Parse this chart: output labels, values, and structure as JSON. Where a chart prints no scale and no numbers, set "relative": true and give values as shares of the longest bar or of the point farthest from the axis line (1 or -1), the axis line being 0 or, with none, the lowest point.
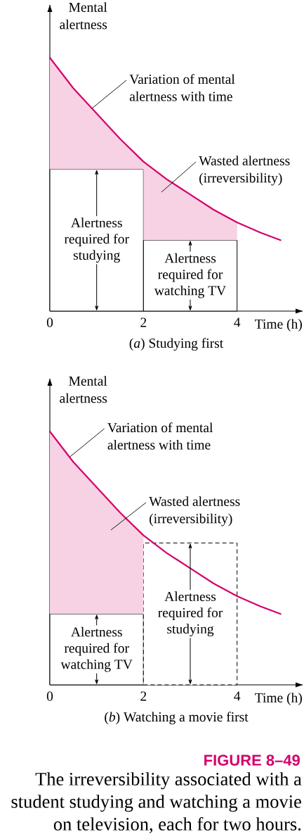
{
  "chart_data": [
    {
      "type": "line",
      "title": "(*a*) Studying first",
      "xlabel": "Time (h)",
      "ylabel": "Mental alertness",
      "relative": true,
      "xlim": [
        0,
        5.4
      ],
      "xticks": [
        0,
        2,
        4
      ],
      "series": [
        {
          "type": "bar",
          "x": [
            1
          ],
          "values": [
            0.56
          ],
          "color": "#ffffff",
          "line_style": "solid"
        },
        {
          "type": "bar",
          "x": [
            3
          ],
          "values": [
            0.28
          ],
          "color": "#ffffff",
          "line_style": "solid"
        },
        {
          "color": "#d4006b",
          "x": [
            0,
            0.5,
            1,
            1.5,
            2,
            2,
            2.5,
            3,
            3.5,
            4,
            4.5,
            4.93
          ],
          "values": [
            1,
            0.88,
            0.78,
            0.68,
            0.59,
            0.59,
            0.52,
            0.46,
            0.4,
            0.35,
            0.31,
            0.28
          ],
          "lower": [
            0.56,
            0.56,
            0.56,
            0.56,
            0.56,
            0.28,
            0.28,
            0.28,
            0.28,
            0.28,
            null,
            null
          ],
          "upper": [
            1,
            0.88,
            0.78,
            0.68,
            0.59,
            0.59,
            0.52,
            0.46,
            0.4,
            0.35,
            null,
            null
          ]
        }
      ],
      "annotations": [
        {
          "text": "Variation of mental alertness with time",
          "x": 0.9,
          "y": 0.8
        },
        "Wasted alertness (irreversibility)",
        {
          "text": "Alertness required for studying",
          "x": 1,
          "y": 0.56
        },
        {
          "text": "Alertness required for watching TV",
          "x": 3,
          "y": 0.28
        }
      ]
    },
    {
      "type": "line",
      "title": "(*b*) Watching a movie first",
      "xlabel": "Time (h)",
      "ylabel": "Mental alertness",
      "relative": true,
      "xlim": [
        0,
        5.4
      ],
      "xticks": [
        0,
        2,
        4
      ],
      "series": [
        {
          "type": "bar",
          "x": [
            1
          ],
          "values": [
            0.28
          ],
          "color": "#ffffff",
          "line_style": "solid"
        },
        {
          "type": "bar",
          "x": [
            3
          ],
          "values": [
            0.56
          ],
          "color": "#ffffff",
          "line_style": "dashed"
        },
        {
          "color": "#d4006b",
          "x": [
            0,
            0.5,
            1,
            1.5,
            2,
            2.5,
            3,
            3.5,
            4,
            4.5,
            4.93
          ],
          "values": [
            1,
            0.88,
            0.78,
            0.68,
            0.59,
            0.52,
            0.46,
            0.4,
            0.35,
            0.31,
            0.28
          ],
          "lower": [
            0.28,
            0.28,
            0.28,
            0.28,
            0.28,
            null,
            null,
            null,
            null,
            null,
            null
          ],
          "upper": [
            1,
            0.88,
            0.78,
            0.68,
            0.59,
            null,
            null,
            null,
            null,
            null,
            null
          ]
        }
      ],
      "annotations": [
        {
          "text": "Variation of mental alertness with time",
          "x": 0.43,
          "y": 0.9
        },
        "Wasted alertness (irreversibility)",
        {
          "text": "Alertness required for watching TV",
          "x": 1,
          "y": 0.28
        },
        {
          "text": "Alertness required for studying",
          "x": 3,
          "y": 0.56
        },
        "FIGURE 8–49",
        "The irreversibility associated with a student studying and watching a movie on television, each for two hours."
      ]
    }
  ]
}
